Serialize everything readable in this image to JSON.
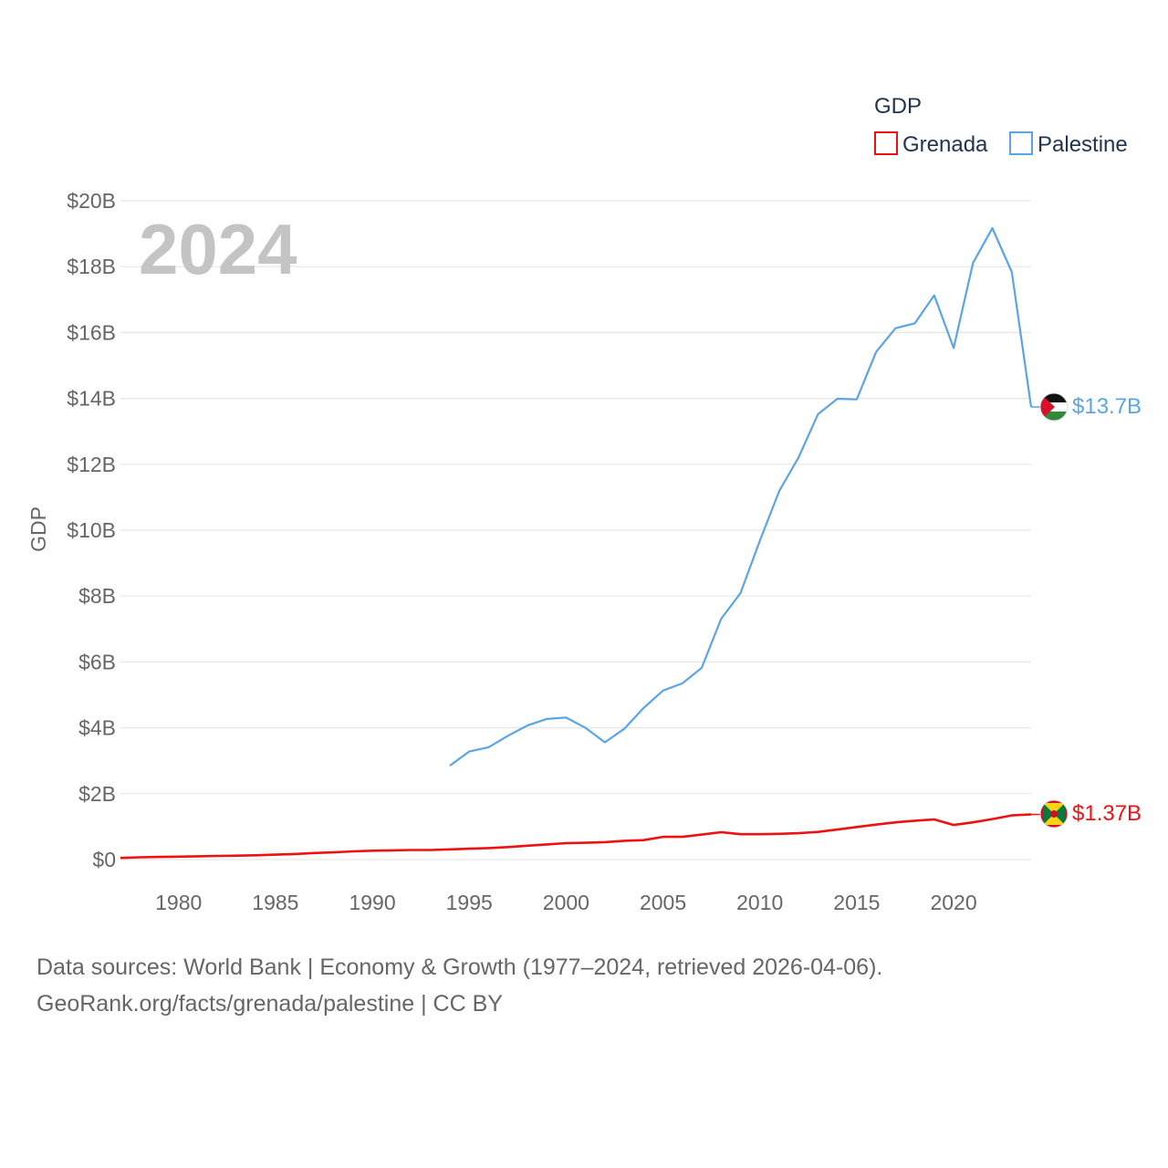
{
  "colors": {
    "grenada": "#ee1111",
    "palestine": "#5ba4e6",
    "grid": "#e6e6e6",
    "tick": "#666666",
    "watermark": "#c4c4c4",
    "legend_text": "#1f3450"
  },
  "chart_data": {
    "type": "line",
    "title": "",
    "year_watermark": "2024",
    "xlabel": "",
    "ylabel": "GDP",
    "xlim": [
      1977,
      2024
    ],
    "ylim": [
      0,
      20
    ],
    "x_ticks": [
      1980,
      1985,
      1990,
      1995,
      2000,
      2005,
      2010,
      2015,
      2020
    ],
    "x_tick_labels": [
      "1980",
      "1985",
      "1990",
      "1995",
      "2000",
      "2005",
      "2010",
      "2015",
      "2020"
    ],
    "y_ticks": [
      0,
      2,
      4,
      6,
      8,
      10,
      12,
      14,
      16,
      18,
      20
    ],
    "y_tick_labels": [
      "$0",
      "$2B",
      "$4B",
      "$6B",
      "$8B",
      "$10B",
      "$12B",
      "$14B",
      "$16B",
      "$18B",
      "$20B"
    ],
    "units": "billions of US dollars",
    "legend": {
      "title": "GDP",
      "placement": "top-right"
    },
    "series": [
      {
        "name": "Grenada",
        "color_key": "grenada",
        "end_label": "$1.37B",
        "flag_icon": "grenada-flag-icon",
        "points": [
          [
            1977,
            0.05
          ],
          [
            1978,
            0.07
          ],
          [
            1979,
            0.08
          ],
          [
            1980,
            0.09
          ],
          [
            1981,
            0.1
          ],
          [
            1982,
            0.11
          ],
          [
            1983,
            0.12
          ],
          [
            1984,
            0.13
          ],
          [
            1985,
            0.15
          ],
          [
            1986,
            0.17
          ],
          [
            1987,
            0.2
          ],
          [
            1988,
            0.22
          ],
          [
            1989,
            0.25
          ],
          [
            1990,
            0.27
          ],
          [
            1991,
            0.28
          ],
          [
            1992,
            0.29
          ],
          [
            1993,
            0.29
          ],
          [
            1994,
            0.31
          ],
          [
            1995,
            0.33
          ],
          [
            1996,
            0.35
          ],
          [
            1997,
            0.38
          ],
          [
            1998,
            0.42
          ],
          [
            1999,
            0.46
          ],
          [
            2000,
            0.5
          ],
          [
            2001,
            0.51
          ],
          [
            2002,
            0.53
          ],
          [
            2003,
            0.57
          ],
          [
            2004,
            0.59
          ],
          [
            2005,
            0.69
          ],
          [
            2006,
            0.69
          ],
          [
            2007,
            0.76
          ],
          [
            2008,
            0.83
          ],
          [
            2009,
            0.77
          ],
          [
            2010,
            0.77
          ],
          [
            2011,
            0.78
          ],
          [
            2012,
            0.8
          ],
          [
            2013,
            0.84
          ],
          [
            2014,
            0.91
          ],
          [
            2015,
            0.99
          ],
          [
            2016,
            1.06
          ],
          [
            2017,
            1.13
          ],
          [
            2018,
            1.18
          ],
          [
            2019,
            1.22
          ],
          [
            2020,
            1.05
          ],
          [
            2021,
            1.13
          ],
          [
            2022,
            1.23
          ],
          [
            2023,
            1.34
          ],
          [
            2024,
            1.37
          ]
        ]
      },
      {
        "name": "Palestine",
        "color_key": "palestine",
        "end_label": "$13.7B",
        "flag_icon": "palestine-flag-icon",
        "points": [
          [
            1994,
            2.85
          ],
          [
            1995,
            3.28
          ],
          [
            1996,
            3.41
          ],
          [
            1997,
            3.76
          ],
          [
            1998,
            4.07
          ],
          [
            1999,
            4.27
          ],
          [
            2000,
            4.31
          ],
          [
            2001,
            4.0
          ],
          [
            2002,
            3.56
          ],
          [
            2003,
            3.97
          ],
          [
            2004,
            4.6
          ],
          [
            2005,
            5.13
          ],
          [
            2006,
            5.35
          ],
          [
            2007,
            5.82
          ],
          [
            2008,
            7.31
          ],
          [
            2009,
            8.09
          ],
          [
            2010,
            9.68
          ],
          [
            2011,
            11.19
          ],
          [
            2012,
            12.21
          ],
          [
            2013,
            13.52
          ],
          [
            2014,
            13.99
          ],
          [
            2015,
            13.97
          ],
          [
            2016,
            15.41
          ],
          [
            2017,
            16.13
          ],
          [
            2018,
            16.28
          ],
          [
            2019,
            17.13
          ],
          [
            2020,
            15.53
          ],
          [
            2021,
            18.11
          ],
          [
            2022,
            19.17
          ],
          [
            2023,
            17.84
          ],
          [
            2024,
            13.74
          ]
        ]
      }
    ]
  },
  "footer": {
    "line1": "Data sources: World Bank | Economy & Growth (1977–2024, retrieved 2026-04-06).",
    "line2": "GeoRank.org/facts/grenada/palestine | CC BY"
  }
}
